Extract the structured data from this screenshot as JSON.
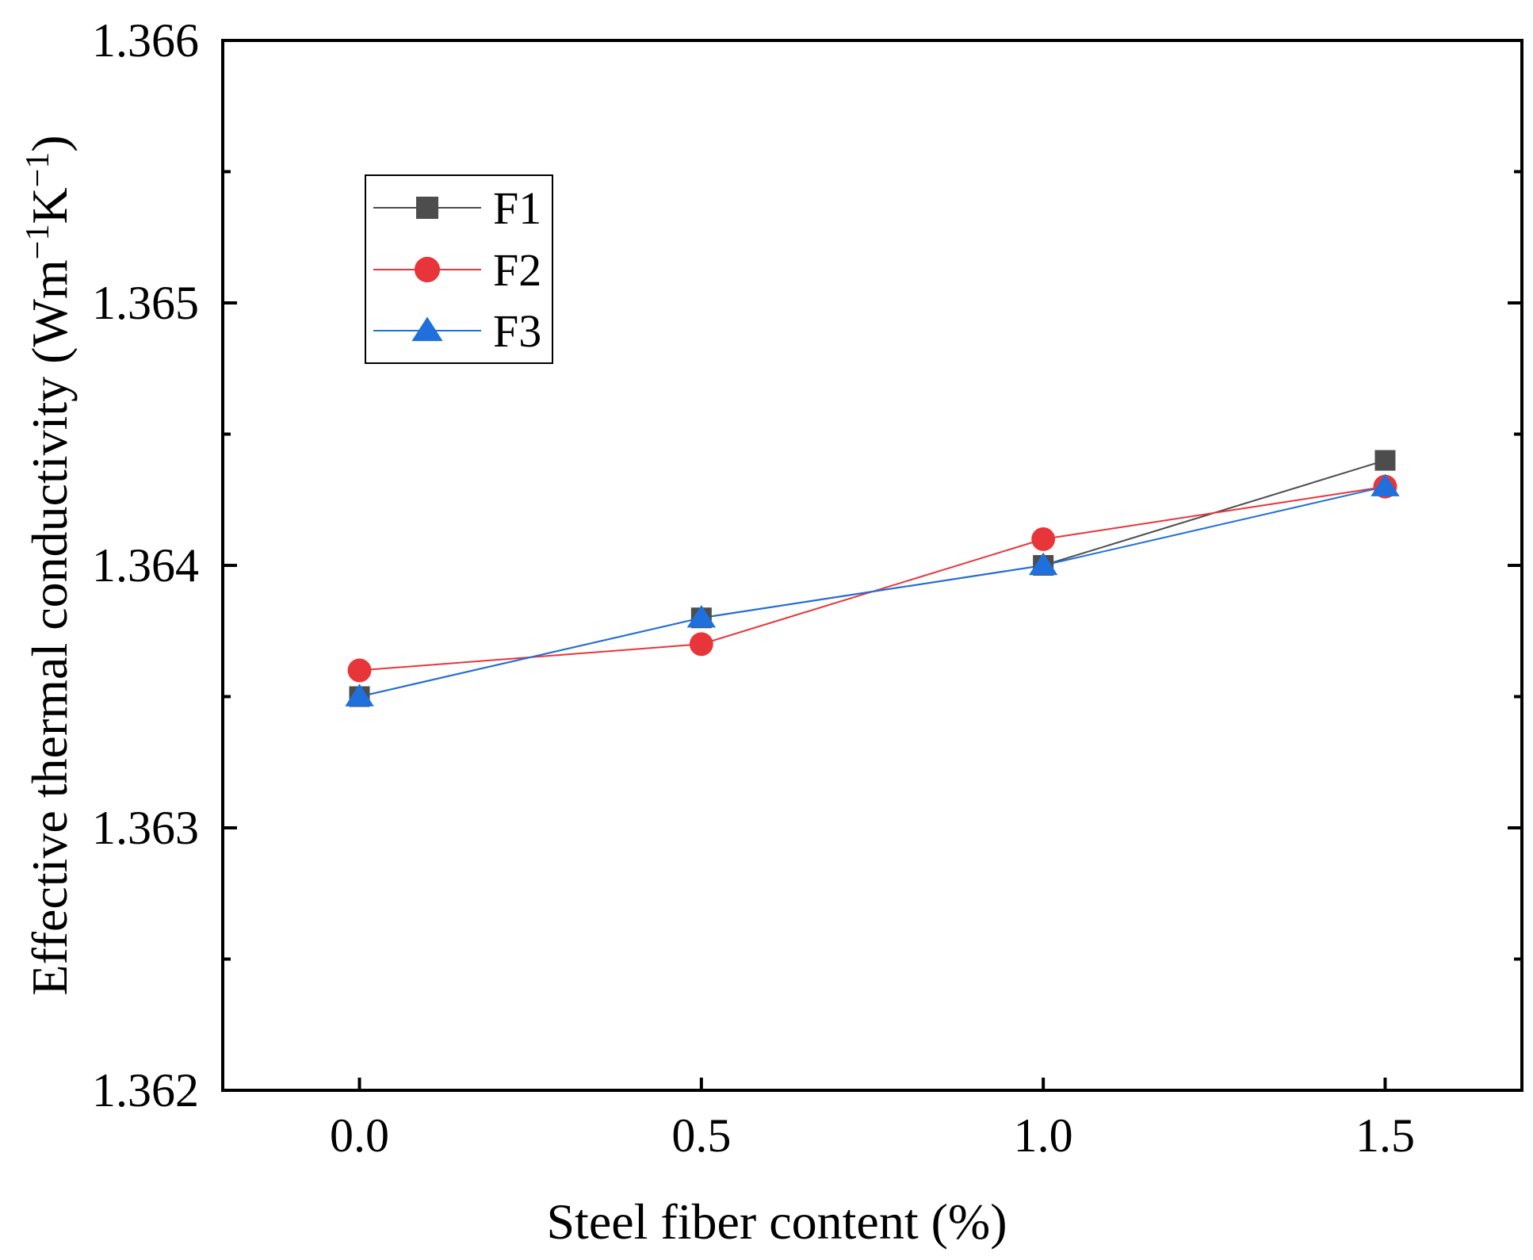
{
  "chart_data": {
    "type": "line",
    "title": "",
    "xlabel": "Steel fiber content (%)",
    "ylabel_main": "Effective thermal conductivity (Wm",
    "ylabel_exp1": "−1",
    "ylabel_mid": "K",
    "ylabel_exp2": "−1",
    "ylabel_close": ")",
    "xlim": [
      -0.2,
      1.7
    ],
    "ylim": [
      1.362,
      1.366
    ],
    "x_ticks": [
      0.0,
      0.5,
      1.0,
      1.5
    ],
    "x_tick_labels": [
      "0.0",
      "0.5",
      "1.0",
      "1.5"
    ],
    "y_ticks": [
      1.362,
      1.363,
      1.364,
      1.365,
      1.366
    ],
    "y_tick_labels": [
      "1.362",
      "1.363",
      "1.364",
      "1.365",
      "1.366"
    ],
    "y_minor_ticks": [
      1.3625,
      1.3635,
      1.3645,
      1.3655
    ],
    "grid": false,
    "legend_position": "upper-left",
    "x": [
      0.0,
      0.5,
      1.0,
      1.5
    ],
    "series": [
      {
        "name": "F1",
        "values": [
          1.3635,
          1.3638,
          1.364,
          1.3644
        ],
        "color": "#4d4d4d",
        "marker": "square"
      },
      {
        "name": "F2",
        "values": [
          1.3636,
          1.3637,
          1.3641,
          1.3643
        ],
        "color": "#e8353a",
        "marker": "circle"
      },
      {
        "name": "F3",
        "values": [
          1.3635,
          1.3638,
          1.364,
          1.3643
        ],
        "color": "#1f6fdc",
        "marker": "triangle"
      }
    ]
  }
}
